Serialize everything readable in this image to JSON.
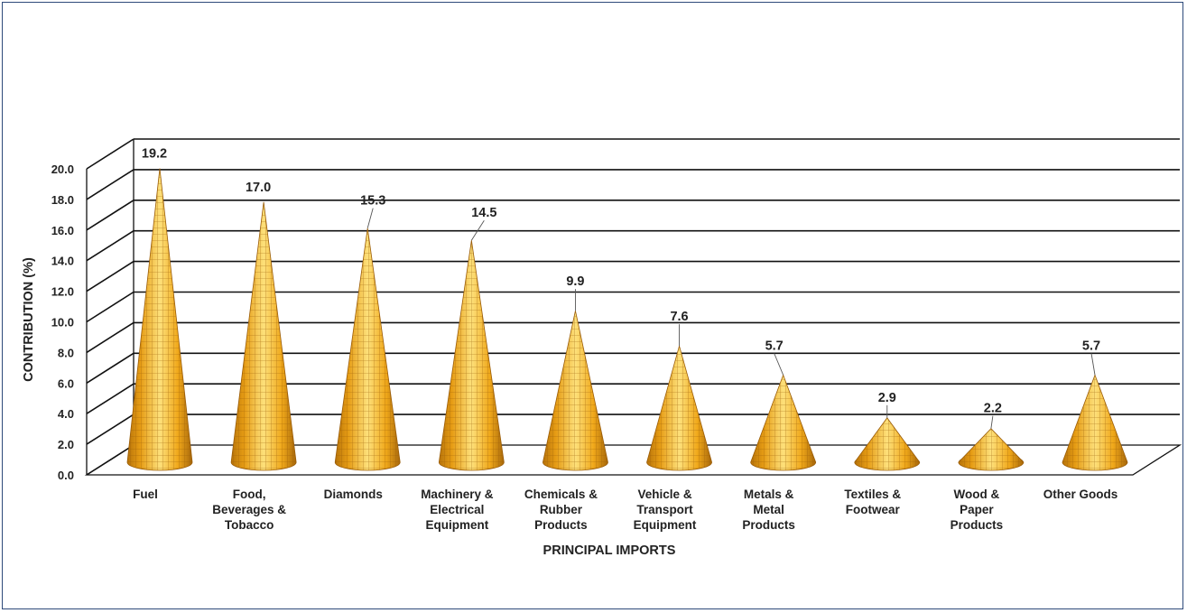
{
  "chart_data": {
    "type": "bar",
    "shape": "cone",
    "three_d": true,
    "categories": [
      [
        "Fuel"
      ],
      [
        "Food,",
        "Beverages &",
        "Tobacco"
      ],
      [
        "Diamonds"
      ],
      [
        "Machinery &",
        "Electrical",
        "Equipment"
      ],
      [
        "Chemicals &",
        "Rubber",
        "Products"
      ],
      [
        "Vehicle &",
        "Transport",
        "Equipment"
      ],
      [
        "Metals &",
        "Metal",
        "Products"
      ],
      [
        "Textiles &",
        "Footwear"
      ],
      [
        "Wood &",
        "Paper",
        "Products"
      ],
      [
        "Other Goods"
      ]
    ],
    "values": [
      19.2,
      17.0,
      15.3,
      14.5,
      9.9,
      7.6,
      5.7,
      2.9,
      2.2,
      5.7
    ],
    "data_labels": [
      "19.2",
      "17.0",
      "15.3",
      "14.5",
      "9.9",
      "7.6",
      "5.7",
      "2.9",
      "2.2",
      "5.7"
    ],
    "ylim": [
      0,
      20
    ],
    "yticks": [
      "0.0",
      "2.0",
      "4.0",
      "6.0",
      "8.0",
      "10.0",
      "12.0",
      "14.0",
      "16.0",
      "18.0",
      "20.0"
    ],
    "xlabel": "PRINCIPAL IMPORTS",
    "ylabel": "CONTRIBUTION (%)",
    "grid": true,
    "legend": "none",
    "colors": {
      "cone_light": "#fde07a",
      "cone_mid": "#f5b21e",
      "cone_dark": "#b8740a",
      "grid_line": "#111111",
      "frame": "#2e4a7a"
    }
  }
}
